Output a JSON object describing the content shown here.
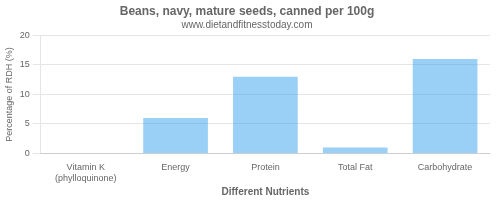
{
  "chart_data": {
    "type": "bar",
    "title": "Beans, navy, mature seeds, canned per 100g",
    "subtitle": "www.dietandfitnesstoday.com",
    "xlabel": "Different Nutrients",
    "ylabel": "Percentage of RDH (%)",
    "categories": [
      "Vitamin K (phylloquinone)",
      "Energy",
      "Protein",
      "Total Fat",
      "Carbohydrate"
    ],
    "values": [
      0,
      6,
      13,
      1,
      16
    ],
    "ylim": [
      0,
      20
    ],
    "yticks": [
      0,
      5,
      10,
      15,
      20
    ],
    "grid": true
  }
}
